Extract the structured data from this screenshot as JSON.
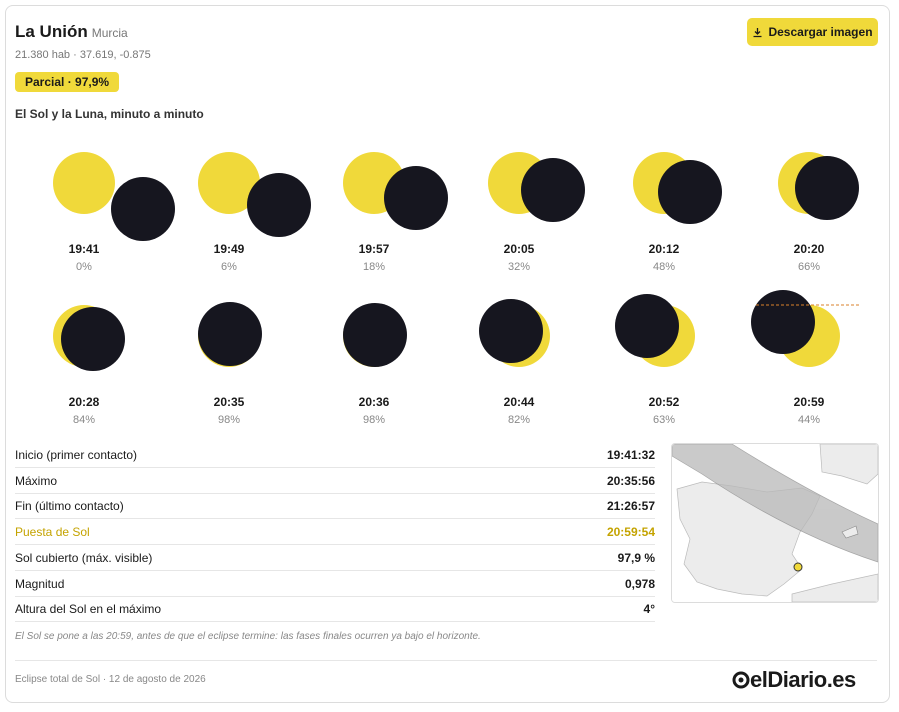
{
  "header": {
    "title": "La Unión",
    "region": "Murcia",
    "meta": "21.380 hab · 37.619, -0.875",
    "badge": "Parcial · 97,9%",
    "button": "Descargar imagen"
  },
  "section_title": "El Sol y la Luna, minuto a minuto",
  "phases": [
    {
      "time": "19:41",
      "coverage": "0%"
    },
    {
      "time": "19:49",
      "coverage": "6%"
    },
    {
      "time": "19:57",
      "coverage": "18%"
    },
    {
      "time": "20:05",
      "coverage": "32%"
    },
    {
      "time": "20:12",
      "coverage": "48%"
    },
    {
      "time": "20:20",
      "coverage": "66%"
    },
    {
      "time": "20:28",
      "coverage": "84%"
    },
    {
      "time": "20:35",
      "coverage": "98%"
    },
    {
      "time": "20:36",
      "coverage": "98%"
    },
    {
      "time": "20:44",
      "coverage": "82%"
    },
    {
      "time": "20:52",
      "coverage": "63%"
    },
    {
      "time": "20:59",
      "coverage": "44%"
    }
  ],
  "table": {
    "rows": [
      [
        "Inicio (primer contacto)",
        "19:41:32"
      ],
      [
        "Máximo",
        "20:35:56"
      ],
      [
        "Fin (último contacto)",
        "21:26:57"
      ],
      [
        "Puesta de Sol",
        "20:59:54"
      ],
      [
        "Sol cubierto (máx. visible)",
        "97,9 %"
      ],
      [
        "Magnitud",
        "0,978"
      ],
      [
        "Altura del Sol en el máximo",
        "4°"
      ]
    ]
  },
  "note": "El Sol se pone a las 20:59, antes de que el eclipse termine: las fases finales ocurren ya bajo el horizonte.",
  "footer": {
    "text": "Eclipse total de Sol · 12 de agosto de 2026",
    "logo": "elDiario.es"
  }
}
